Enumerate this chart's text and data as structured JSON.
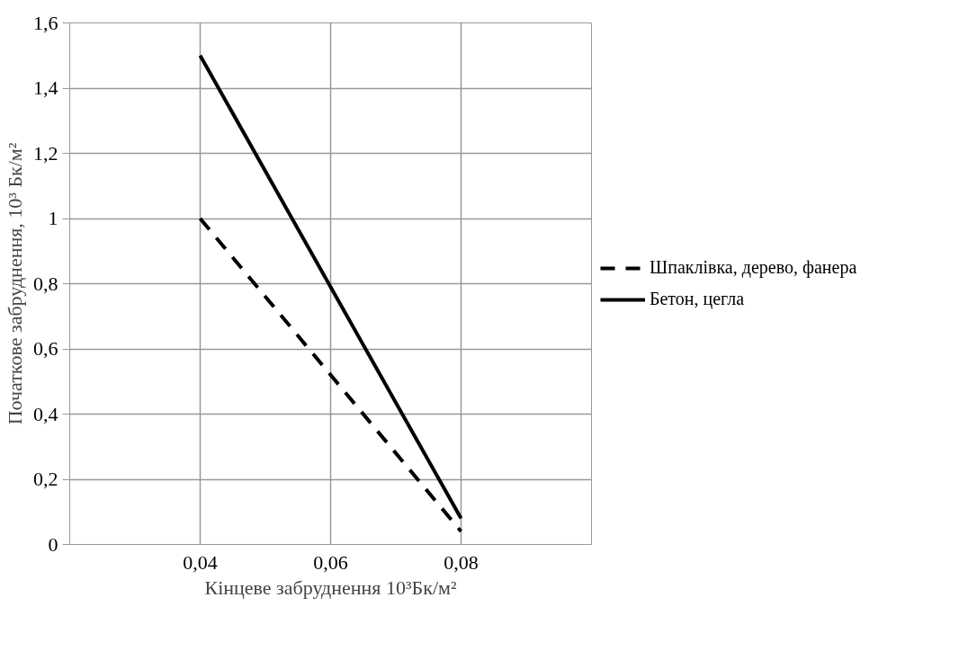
{
  "chart_data": {
    "type": "line",
    "xlabel": "Кінцеве забруднення 10³Бк/м²",
    "ylabel": "Початкове забруднення, 10³ Бк/м²",
    "xlim": [
      0.02,
      0.1
    ],
    "xticks": [
      {
        "value": 0.02,
        "label": null
      },
      {
        "value": 0.04,
        "label": "0,04"
      },
      {
        "value": 0.06,
        "label": "0,06"
      },
      {
        "value": 0.08,
        "label": "0,08"
      },
      {
        "value": 0.1,
        "label": null
      }
    ],
    "ylim": [
      0,
      1.6
    ],
    "yticks": [
      0,
      {
        "value": 0.2,
        "label": "0,2"
      },
      {
        "value": 0.4,
        "label": "0,4"
      },
      {
        "value": 0.6,
        "label": "0,6"
      },
      {
        "value": 0.8,
        "label": "0,8"
      },
      1,
      {
        "value": 1.2,
        "label": "1,2"
      },
      {
        "value": 1.4,
        "label": "1,4"
      },
      {
        "value": 1.6,
        "label": "1,6"
      }
    ],
    "grid": true,
    "legend": "right",
    "x": [
      0.04,
      0.08
    ],
    "series": [
      {
        "name": "Шпаклівка, дерево, фанера",
        "color": "#000000",
        "line_style": "dashed",
        "values": [
          1.0,
          0.04
        ]
      },
      {
        "name": "Бетон, цегла",
        "color": "#000000",
        "line_style": "solid",
        "values": [
          1.5,
          0.08
        ]
      }
    ]
  }
}
